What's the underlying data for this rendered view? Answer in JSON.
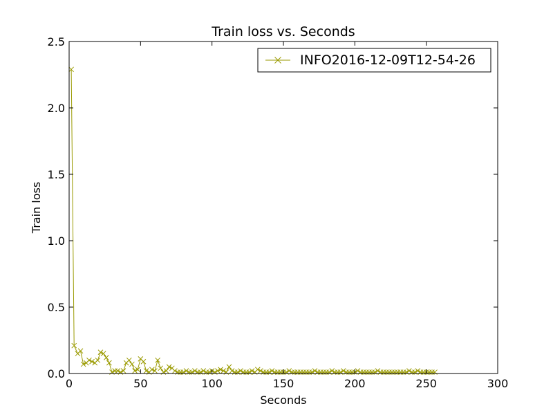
{
  "chart_data": {
    "type": "line",
    "title": "Train loss  vs. Seconds",
    "xlabel": "Seconds",
    "ylabel": "Train loss",
    "xlim": [
      0,
      300
    ],
    "ylim": [
      0,
      2.5
    ],
    "xticks": [
      0,
      50,
      100,
      150,
      200,
      250,
      300
    ],
    "yticks": [
      0.0,
      0.5,
      1.0,
      1.5,
      2.0,
      2.5
    ],
    "xtick_labels": [
      "0",
      "50",
      "100",
      "150",
      "200",
      "250",
      "300"
    ],
    "ytick_labels": [
      "0.0",
      "0.5",
      "1.0",
      "1.5",
      "2.0",
      "2.5"
    ],
    "grid": false,
    "legend_position": "top-right",
    "marker": "x",
    "color": "#9a9a00",
    "series": [
      {
        "name": "INFO2016-12-09T12-54-26",
        "x": [
          1.5,
          3.5,
          6,
          8,
          10,
          12,
          14,
          16,
          18,
          20,
          22,
          24,
          26,
          28,
          30,
          32,
          34,
          36,
          38,
          40,
          42,
          44,
          46,
          48,
          50,
          52,
          54,
          56,
          58,
          60,
          62,
          64,
          66,
          68,
          70,
          72,
          74,
          76,
          78,
          80,
          82,
          84,
          86,
          88,
          90,
          92,
          94,
          96,
          98,
          100,
          102,
          104,
          106,
          108,
          110,
          112,
          114,
          116,
          118,
          120,
          122,
          124,
          126,
          128,
          130,
          132,
          134,
          136,
          138,
          140,
          142,
          144,
          146,
          148,
          150,
          152,
          154,
          156,
          158,
          160,
          162,
          164,
          166,
          168,
          170,
          172,
          174,
          176,
          178,
          180,
          182,
          184,
          186,
          188,
          190,
          192,
          194,
          196,
          198,
          200,
          202,
          204,
          206,
          208,
          210,
          212,
          214,
          216,
          218,
          220,
          222,
          224,
          226,
          228,
          230,
          232,
          234,
          236,
          238,
          240,
          242,
          244,
          246,
          248,
          250,
          252,
          254,
          256
        ],
        "y": [
          2.29,
          0.21,
          0.15,
          0.17,
          0.07,
          0.08,
          0.1,
          0.09,
          0.08,
          0.1,
          0.16,
          0.15,
          0.12,
          0.08,
          0.01,
          0.02,
          0.02,
          0.01,
          0.02,
          0.08,
          0.1,
          0.07,
          0.02,
          0.03,
          0.11,
          0.09,
          0.02,
          0.01,
          0.03,
          0.02,
          0.1,
          0.04,
          0.01,
          0.02,
          0.05,
          0.04,
          0.02,
          0.01,
          0.01,
          0.01,
          0.02,
          0.01,
          0.01,
          0.02,
          0.01,
          0.01,
          0.02,
          0.01,
          0.01,
          0.02,
          0.01,
          0.02,
          0.03,
          0.02,
          0.01,
          0.05,
          0.02,
          0.01,
          0.01,
          0.02,
          0.01,
          0.01,
          0.01,
          0.02,
          0.01,
          0.03,
          0.02,
          0.01,
          0.01,
          0.01,
          0.02,
          0.01,
          0.01,
          0.01,
          0.01,
          0.01,
          0.02,
          0.01,
          0.01,
          0.01,
          0.01,
          0.01,
          0.01,
          0.01,
          0.01,
          0.02,
          0.01,
          0.01,
          0.01,
          0.01,
          0.01,
          0.02,
          0.01,
          0.01,
          0.01,
          0.02,
          0.01,
          0.01,
          0.01,
          0.01,
          0.02,
          0.01,
          0.01,
          0.01,
          0.01,
          0.01,
          0.01,
          0.02,
          0.01,
          0.01,
          0.01,
          0.01,
          0.01,
          0.01,
          0.01,
          0.01,
          0.01,
          0.01,
          0.02,
          0.01,
          0.01,
          0.02,
          0.01,
          0.01,
          0.01,
          0.01,
          0.01,
          0.01
        ]
      }
    ]
  }
}
